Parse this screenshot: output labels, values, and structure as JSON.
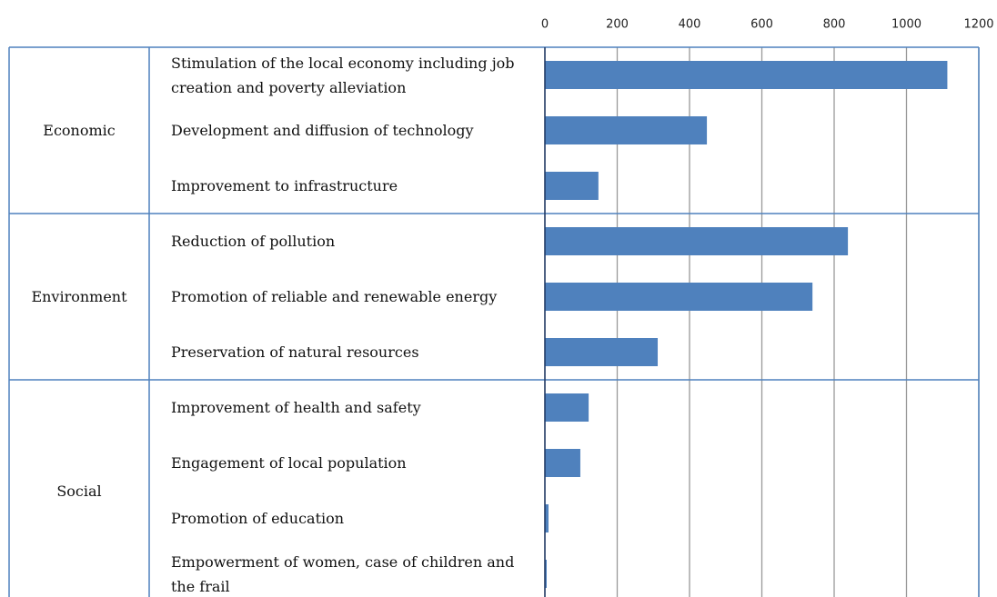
{
  "chart_data": {
    "type": "bar",
    "orientation": "horizontal",
    "color": "#4f81bd",
    "grid": true,
    "xlim": [
      0,
      1200
    ],
    "xticks": [
      0,
      200,
      400,
      600,
      800,
      1000,
      1200
    ],
    "groups": [
      {
        "name": "Economic",
        "categories": [
          "Stimulation of the local economy including job creation and poverty alleviation",
          "Development and diffusion of technology",
          "Improvement to infrastructure"
        ],
        "values": [
          1113,
          448,
          148
        ]
      },
      {
        "name": "Environment",
        "categories": [
          "Reduction of pollution",
          "Promotion of reliable and renewable energy",
          "Preservation of natural resources"
        ],
        "values": [
          838,
          740,
          312
        ]
      },
      {
        "name": "Social",
        "categories": [
          "Improvement of health and safety",
          "Engagement of local population",
          "Promotion of education",
          "Empowerment of women, case of children and the frail"
        ],
        "values": [
          121,
          98,
          10,
          5
        ]
      }
    ]
  }
}
